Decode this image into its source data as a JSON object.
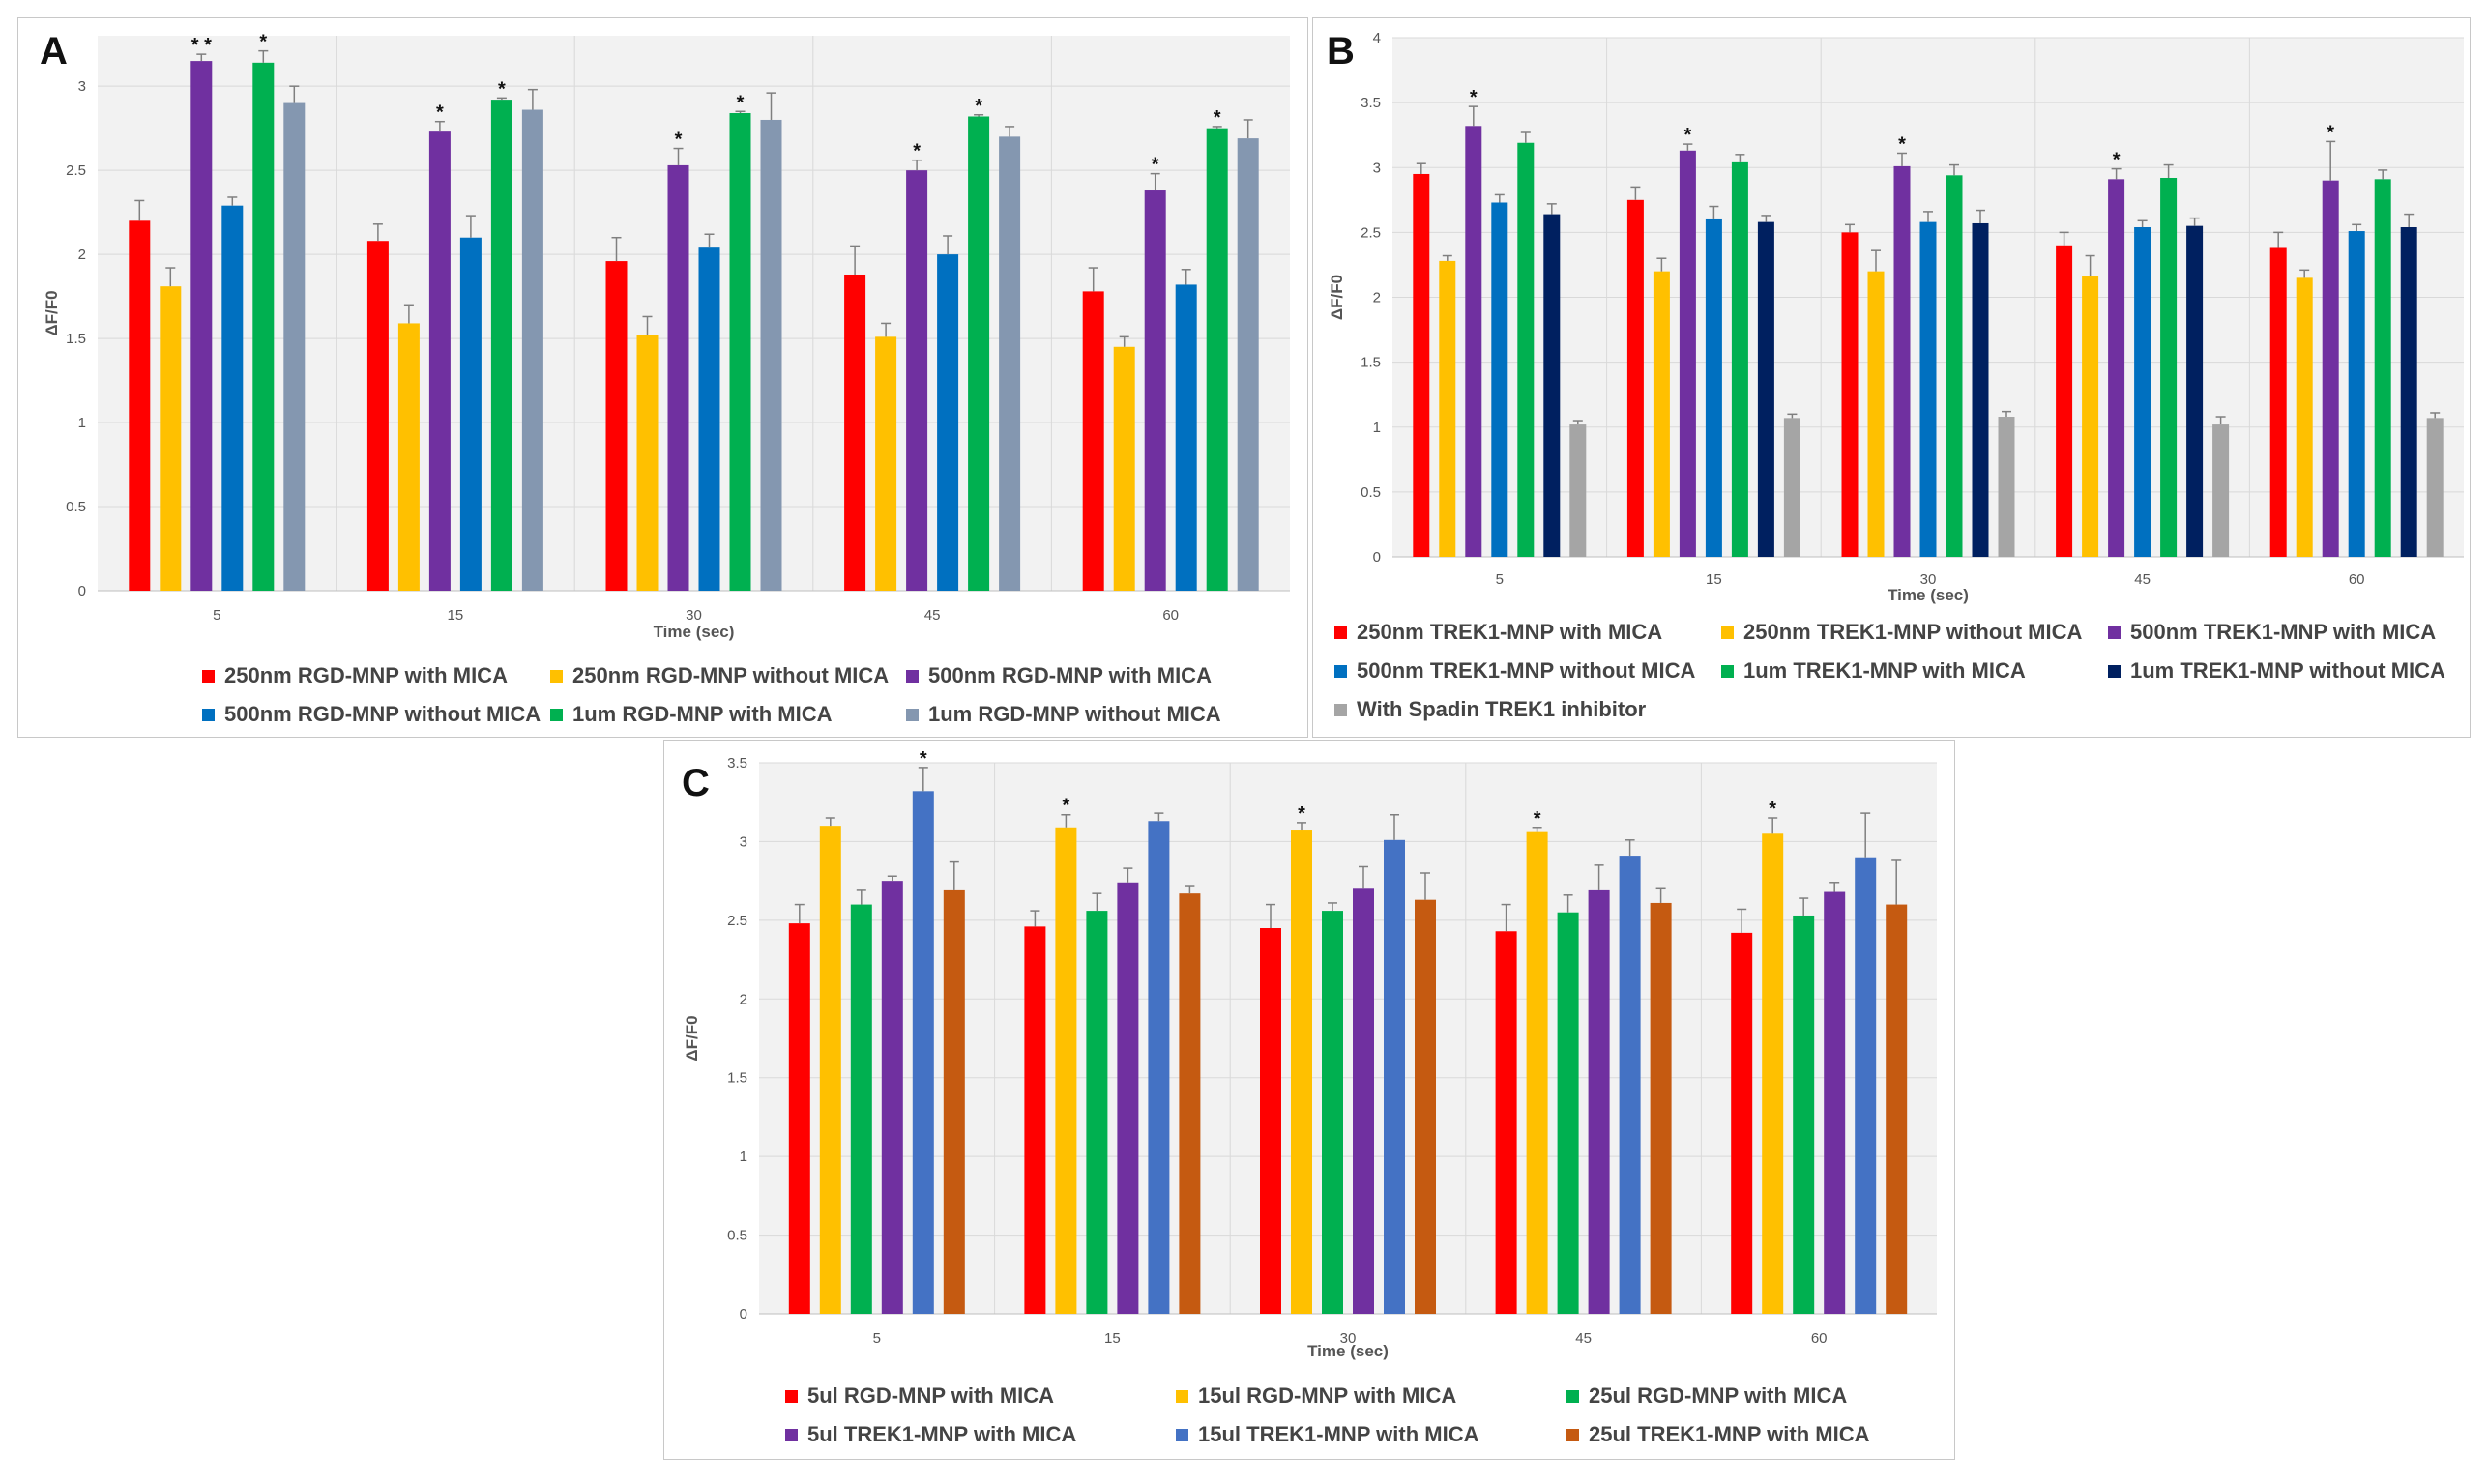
{
  "chart_data": [
    {
      "type": "bar",
      "panel": "A",
      "title": "",
      "xlabel": "Time (sec)",
      "ylabel": "ΔF/F0",
      "ylim": [
        0,
        3.3
      ],
      "yticks": [
        "0",
        "0.5",
        "1",
        "1.5",
        "2",
        "2.5",
        "3"
      ],
      "categories": [
        "5",
        "15",
        "30",
        "45",
        "60"
      ],
      "legend_position": "bottom",
      "series": [
        {
          "name": "250nm RGD-MNP with MICA",
          "color": "#ff0000",
          "values": [
            2.2,
            2.08,
            1.96,
            1.88,
            1.78
          ],
          "errors": [
            0.12,
            0.1,
            0.14,
            0.17,
            0.14
          ],
          "stars": [
            "",
            "",
            "",
            "",
            ""
          ]
        },
        {
          "name": "250nm RGD-MNP without MICA",
          "color": "#ffc000",
          "values": [
            1.81,
            1.59,
            1.52,
            1.51,
            1.45
          ],
          "errors": [
            0.11,
            0.11,
            0.11,
            0.08,
            0.06
          ],
          "stars": [
            "",
            "",
            "",
            "",
            ""
          ]
        },
        {
          "name": "500nm RGD-MNP with MICA",
          "color": "#7030a0",
          "values": [
            3.15,
            2.73,
            2.53,
            2.5,
            2.38
          ],
          "errors": [
            0.04,
            0.06,
            0.1,
            0.06,
            0.1
          ],
          "stars": [
            "**",
            "*",
            "*",
            "*",
            "*"
          ]
        },
        {
          "name": "500nm RGD-MNP without MICA",
          "color": "#0070c0",
          "values": [
            2.29,
            2.1,
            2.04,
            2.0,
            1.82
          ],
          "errors": [
            0.05,
            0.13,
            0.08,
            0.11,
            0.09
          ],
          "stars": [
            "",
            "",
            "",
            "",
            ""
          ]
        },
        {
          "name": "1um RGD-MNP with MICA",
          "color": "#00b050",
          "values": [
            3.14,
            2.92,
            2.84,
            2.82,
            2.75
          ],
          "errors": [
            0.07,
            0.01,
            0.01,
            0.01,
            0.01
          ],
          "stars": [
            "*",
            "*",
            "*",
            "*",
            "*"
          ]
        },
        {
          "name": "1um RGD-MNP without MICA",
          "color": "#8497b0",
          "values": [
            2.9,
            2.86,
            2.8,
            2.7,
            2.69
          ],
          "errors": [
            0.1,
            0.12,
            0.16,
            0.06,
            0.11
          ],
          "stars": [
            "",
            "",
            "",
            "",
            ""
          ]
        }
      ]
    },
    {
      "type": "bar",
      "panel": "B",
      "title": "",
      "xlabel": "Time (sec)",
      "ylabel": "ΔF/F0",
      "ylim": [
        0,
        4
      ],
      "yticks": [
        "0",
        "0.5",
        "1",
        "1.5",
        "2",
        "2.5",
        "3",
        "3.5",
        "4"
      ],
      "categories": [
        "5",
        "15",
        "30",
        "45",
        "60"
      ],
      "legend_position": "bottom",
      "series": [
        {
          "name": "250nm TREK1-MNP with MICA",
          "color": "#ff0000",
          "values": [
            2.95,
            2.75,
            2.5,
            2.4,
            2.38
          ],
          "errors": [
            0.08,
            0.1,
            0.06,
            0.1,
            0.12
          ],
          "stars": [
            "",
            "",
            "",
            "",
            ""
          ]
        },
        {
          "name": "250nm TREK1-MNP without MICA",
          "color": "#ffc000",
          "values": [
            2.28,
            2.2,
            2.2,
            2.16,
            2.15
          ],
          "errors": [
            0.04,
            0.1,
            0.16,
            0.16,
            0.06
          ],
          "stars": [
            "",
            "",
            "",
            "",
            ""
          ]
        },
        {
          "name": "500nm TREK1-MNP with MICA",
          "color": "#7030a0",
          "values": [
            3.32,
            3.13,
            3.01,
            2.91,
            2.9
          ],
          "errors": [
            0.15,
            0.05,
            0.1,
            0.08,
            0.3
          ],
          "stars": [
            "*",
            "*",
            "*",
            "*",
            "*"
          ]
        },
        {
          "name": "500nm TREK1-MNP without MICA",
          "color": "#0070c0",
          "values": [
            2.73,
            2.6,
            2.58,
            2.54,
            2.51
          ],
          "errors": [
            0.06,
            0.1,
            0.08,
            0.05,
            0.05
          ],
          "stars": [
            "",
            "",
            "",
            "",
            ""
          ]
        },
        {
          "name": "1um TREK1-MNP with MICA",
          "color": "#00b050",
          "values": [
            3.19,
            3.04,
            2.94,
            2.92,
            2.91
          ],
          "errors": [
            0.08,
            0.06,
            0.08,
            0.1,
            0.07
          ],
          "stars": [
            "",
            "",
            "",
            "",
            ""
          ]
        },
        {
          "name": "1um TREK1-MNP without MICA",
          "color": "#002060",
          "values": [
            2.64,
            2.58,
            2.57,
            2.55,
            2.54
          ],
          "errors": [
            0.08,
            0.05,
            0.1,
            0.06,
            0.1
          ],
          "stars": [
            "",
            "",
            "",
            "",
            ""
          ]
        },
        {
          "name": "With Spadin TREK1 inhibitor",
          "color": "#a5a5a5",
          "values": [
            1.02,
            1.07,
            1.08,
            1.02,
            1.07
          ],
          "errors": [
            0.03,
            0.03,
            0.04,
            0.06,
            0.04
          ],
          "stars": [
            "",
            "",
            "",
            "",
            ""
          ]
        }
      ]
    },
    {
      "type": "bar",
      "panel": "C",
      "title": "",
      "xlabel": "Time (sec)",
      "ylabel": "ΔF/F0",
      "ylim": [
        0,
        3.5
      ],
      "yticks": [
        "0",
        "0.5",
        "1",
        "1.5",
        "2",
        "2.5",
        "3",
        "3.5"
      ],
      "categories": [
        "5",
        "15",
        "30",
        "45",
        "60"
      ],
      "legend_position": "bottom",
      "series": [
        {
          "name": "5ul RGD-MNP with MICA",
          "color": "#ff0000",
          "values": [
            2.48,
            2.46,
            2.45,
            2.43,
            2.42
          ],
          "errors": [
            0.12,
            0.1,
            0.15,
            0.17,
            0.15
          ],
          "stars": [
            "",
            "",
            "",
            "",
            ""
          ]
        },
        {
          "name": "15ul RGD-MNP with MICA",
          "color": "#ffc000",
          "values": [
            3.1,
            3.09,
            3.07,
            3.06,
            3.05
          ],
          "errors": [
            0.05,
            0.08,
            0.05,
            0.03,
            0.1
          ],
          "stars": [
            "",
            "*",
            "*",
            "*",
            "*"
          ]
        },
        {
          "name": "25ul RGD-MNP with MICA",
          "color": "#00b050",
          "values": [
            2.6,
            2.56,
            2.56,
            2.55,
            2.53
          ],
          "errors": [
            0.09,
            0.11,
            0.05,
            0.11,
            0.11
          ],
          "stars": [
            "",
            "",
            "",
            "",
            ""
          ]
        },
        {
          "name": "5ul TREK1-MNP with MICA",
          "color": "#7030a0",
          "values": [
            2.75,
            2.74,
            2.7,
            2.69,
            2.68
          ],
          "errors": [
            0.03,
            0.09,
            0.14,
            0.16,
            0.06
          ],
          "stars": [
            "",
            "",
            "",
            "",
            ""
          ]
        },
        {
          "name": "15ul TREK1-MNP with MICA",
          "color": "#4472c4",
          "values": [
            3.32,
            3.13,
            3.01,
            2.91,
            2.9
          ],
          "errors": [
            0.15,
            0.05,
            0.16,
            0.1,
            0.28
          ],
          "stars": [
            "*",
            "",
            "",
            "",
            ""
          ]
        },
        {
          "name": "25ul TREK1-MNP with MICA",
          "color": "#c55a11",
          "values": [
            2.69,
            2.67,
            2.63,
            2.61,
            2.6
          ],
          "errors": [
            0.18,
            0.05,
            0.17,
            0.09,
            0.28
          ],
          "stars": [
            "",
            "",
            "",
            "",
            ""
          ]
        }
      ]
    }
  ],
  "panels": {
    "a": {
      "label": "A"
    },
    "b": {
      "label": "B"
    },
    "c": {
      "label": "C"
    }
  }
}
